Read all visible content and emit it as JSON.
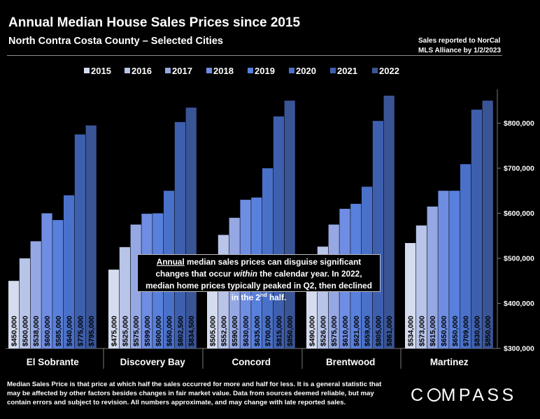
{
  "header": {
    "title": "Annual Median House Sales Prices since 2015",
    "subtitle": "North Contra Costa County – Selected Cities",
    "source_line1": "Sales reported to NorCal",
    "source_line2": "MLS Alliance by 1/2/2023"
  },
  "callout": {
    "word_annual": "Annual",
    "text_1": " median sales prices can disguise significant changes that occur ",
    "word_within": "within",
    "text_2": " the calendar year. In 2022, median home prices typically peaked in Q2, then declined in the 2",
    "sup": "nd",
    "text_3": " half."
  },
  "footnote": "Median Sales Price is that price at which half the sales occurred for more and half for less. It is a general statistic that may be affected by other factors besides changes in fair market value. Data from sources deemed reliable, but may contain errors and subject to revision.  All numbers approximate, and may change with late reported sales.",
  "logo": {
    "left": "C",
    "right": "MPASS"
  },
  "chart_data": {
    "type": "bar",
    "categories": [
      "El Sobrante",
      "Discovery Bay",
      "Concord",
      "Brentwood",
      "Martinez"
    ],
    "series": [
      {
        "name": "2015",
        "color": "#d6dcef",
        "values": [
          450000,
          475000,
          505000,
          490000,
          534000
        ]
      },
      {
        "name": "2016",
        "color": "#b8c4e8",
        "values": [
          500000,
          525000,
          552000,
          526000,
          573000
        ]
      },
      {
        "name": "2017",
        "color": "#95a8e3",
        "values": [
          538000,
          575000,
          590000,
          575000,
          615000
        ]
      },
      {
        "name": "2018",
        "color": "#6f8de2",
        "values": [
          600000,
          599000,
          630000,
          610000,
          650000
        ]
      },
      {
        "name": "2019",
        "color": "#5880dc",
        "values": [
          585000,
          600000,
          635000,
          621000,
          650000
        ]
      },
      {
        "name": "2020",
        "color": "#4a71c9",
        "values": [
          640000,
          650000,
          700000,
          659000,
          709000
        ]
      },
      {
        "name": "2021",
        "color": "#3e5fae",
        "values": [
          775000,
          802500,
          815000,
          805000,
          830000
        ]
      },
      {
        "name": "2022",
        "color": "#3a5595",
        "values": [
          795000,
          834500,
          850000,
          861000,
          850000
        ]
      }
    ],
    "value_labels": [
      [
        "$450,000",
        "$500,000",
        "$538,000",
        "$600,000",
        "$585,000",
        "$640,000",
        "$775,000",
        "$795,000"
      ],
      [
        "$475,000",
        "$525,000",
        "$575,000",
        "$599,000",
        "$600,000",
        "$650,000",
        "$802,500",
        "$834,500"
      ],
      [
        "$505,000",
        "$552,000",
        "$590,000",
        "$630,000",
        "$635,000",
        "$700,000",
        "$815,000",
        "$850,000"
      ],
      [
        "$490,000",
        "$526,000",
        "$575,000",
        "$610,000",
        "$621,000",
        "$659,000",
        "$805,000",
        "$861,000"
      ],
      [
        "$534,000",
        "$573,000",
        "$615,000",
        "$650,000",
        "$650,000",
        "$709,000",
        "$830,000",
        "$850,000"
      ]
    ],
    "y_ticks": [
      300000,
      400000,
      500000,
      600000,
      700000,
      800000
    ],
    "y_tick_labels": [
      "$300,000",
      "$400,000",
      "$500,000",
      "$600,000",
      "$700,000",
      "$800,000"
    ],
    "ylim": [
      300000,
      875000
    ],
    "axis_position": "right",
    "legend_position": "top",
    "grid": false,
    "xlabel": "",
    "ylabel": ""
  }
}
